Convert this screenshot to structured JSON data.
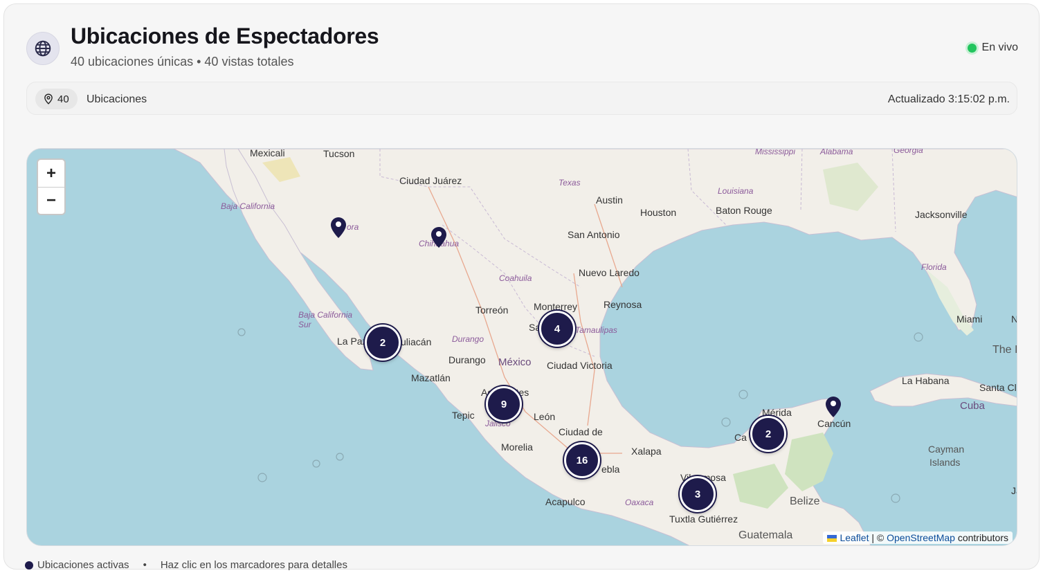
{
  "header": {
    "title": "Ubicaciones de Espectadores",
    "subtitle": "40 ubicaciones únicas • 40 vistas totales",
    "icon": "globe-icon",
    "live_label": "En vivo",
    "live_color": "#22c55e"
  },
  "stats": {
    "count": "40",
    "count_label": "Ubicaciones",
    "updated": "Actualizado 3:15:02 p.m."
  },
  "map": {
    "zoom_in": "+",
    "zoom_out": "−",
    "clusters": [
      "2",
      "4",
      "9",
      "16",
      "2",
      "3"
    ],
    "pin_count": 3,
    "labels": {
      "mexicali": "Mexicali",
      "tucson": "Tucson",
      "ciudad_juarez": "Ciudad Juárez",
      "texas": "Texas",
      "mississippi": "Mississippi",
      "alabama": "Alabama",
      "georgia": "Georgia",
      "louisiana": "Louisiana",
      "austin": "Austin",
      "houston": "Houston",
      "baton_rouge": "Baton Rouge",
      "jacksonville": "Jacksonville",
      "san_antonio": "San Antonio",
      "baja_california": "Baja California",
      "sonora": "ora",
      "chihuahua": "Chihuahua",
      "nuevo_laredo": "Nuevo Laredo",
      "florida": "Florida",
      "coahuila": "Coahuila",
      "torreon": "Torreón",
      "monterrey": "Monterrey",
      "reynosa": "Reynosa",
      "miami": "Miami",
      "baja_california_sur": "Baja California Sur",
      "la_paz": "La Paz",
      "culiacan": "uliacán",
      "durango_state": "Durango",
      "tamaulipas": "Tamaulipas",
      "saltillo": "Sa",
      "the_i": "The I",
      "durango": "Durango",
      "mexico": "México",
      "ciudad_victoria": "Ciudad Victoria",
      "mazatlan": "Mazatlán",
      "la_habana": "La Habana",
      "santa_cl": "Santa Cl",
      "aguascalientes": "Ag   alientes",
      "cuba": "Cuba",
      "merida": "Mérida",
      "tepic": "Tepic",
      "jalisco": "Jalisco",
      "leon": "León",
      "cancun": "Cancún",
      "ciudad_de_mexico": "Ciudad de",
      "campeche": "Ca",
      "cayman": "Cayman",
      "islands": "Islands",
      "morelia": "Morelia",
      "xalapa": "Xalapa",
      "puebla": "ebla",
      "villahermosa": "Vil  ermosa",
      "belize": "Belize",
      "acapulco": "Acapulco",
      "oaxaca": "Oaxaca",
      "tuxtla": "Tuxtla Gutiérrez",
      "guatemala": "Guatemala",
      "ja": "Ja",
      "n": "N"
    },
    "attribution": {
      "leaflet": "Leaflet",
      "sep": " | © ",
      "osm": "OpenStreetMap",
      "contributors": " contributors"
    }
  },
  "footer": {
    "legend": "Ubicaciones activas",
    "bullet": "•",
    "hint": "Haz clic en los marcadores para detalles"
  },
  "colors": {
    "marker": "#1e1b4b",
    "water": "#aad3df",
    "land": "#f2efe9"
  }
}
